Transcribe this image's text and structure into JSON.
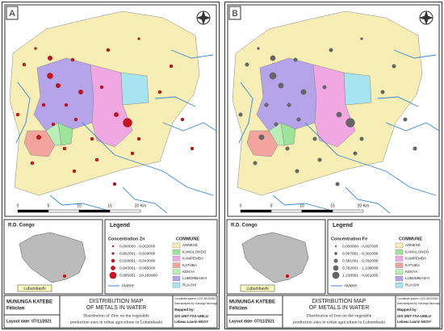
{
  "panels": [
    {
      "label": "A",
      "scale": [
        "0",
        "5",
        "10",
        "15",
        "20 Km"
      ],
      "legend": {
        "title": "Legend",
        "concentration_title": "Concentration Zn",
        "classes": [
          "0,000000 - 0,002000",
          "0,002001 - 0,028000",
          "0,028001 - 0,043000",
          "0,043001 - 0,065000",
          "0,065001 - 10,160000"
        ],
        "commune_title": "COMMUNE",
        "communes": [
          "ANNEXE",
          "KAMALONDO",
          "KAMPEMBA",
          "KATUBA",
          "KENYA",
          "LUBUMBASHI",
          "RUASHI"
        ],
        "river": "riviere"
      },
      "inset": {
        "country": "R.D. Congo",
        "city": "Lubumbashi"
      },
      "title_block": {
        "author": "MUNUNGA KATEBE",
        "author2": "Félicien",
        "title": "DISTRIBUTION MAP",
        "title2": "OF METALS IN WATER",
        "subtitle": "Distribution of Zinc on the vegetable",
        "subtitle2": "production sites in urban agriculture in Lubumbashi",
        "layout_date": "Layout date: 07/11/2021",
        "coordinate": "Coordinate system: GCS WGS1984",
        "analyzed": "Data analyzed by: Kasongo Mununga",
        "mapped_label": "Mapped by:",
        "mapped_by": "GIS UNIT FSA-UNILU",
        "mapped_by2": "Lebeau Laurin NGOY"
      }
    },
    {
      "label": "B",
      "scale": [
        "0",
        "5",
        "10",
        "15",
        "20 Km"
      ],
      "legend": {
        "title": "Legend",
        "concentration_title": "Concentration Fe",
        "classes": [
          "0,000000 - 0,097000",
          "0,097001 - 0,381000",
          "0,381001 - 0,782000",
          "0,782001 - 1,238000",
          "1,238001 - 4,661000"
        ],
        "commune_title": "COMMUNE",
        "communes": [
          "ANNEXE",
          "KAMALONDO",
          "KAMPEMBA",
          "KATUBA",
          "KENYA",
          "LUBUMBASHI",
          "RUASHI"
        ],
        "river": "riviere"
      },
      "inset": {
        "country": "R.D. Congo",
        "city": "Lubumbashi"
      },
      "title_block": {
        "author": "MUNUNGA KATEBE",
        "author2": "Félicien",
        "title": "DISTRIBUTION MAP",
        "title2": "OF METALS IN WATER",
        "subtitle": "Distribution of Iron on the vegetable",
        "subtitle2": "production sites in urban agriculture in Lubumbashi",
        "layout_date": "Layout date: 07/11/2021",
        "coordinate": "Coordinate system: GCS WGS1984",
        "analyzed": "Data analyzed by: Kasongo Mununga",
        "mapped_label": "Mapped by:",
        "mapped_by": "GIS UNIT FSA-UNILU",
        "mapped_by2": "Lebeau Laurin NGOY"
      }
    }
  ]
}
